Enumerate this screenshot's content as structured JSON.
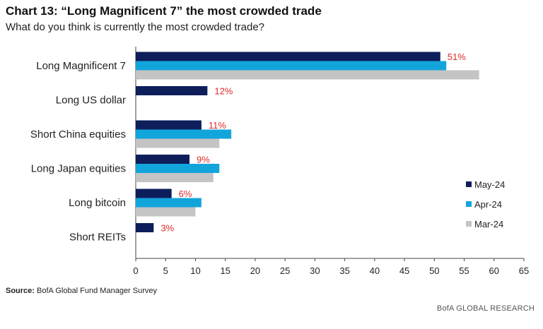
{
  "title": "Chart 13: “Long Magnificent 7” the most crowded trade",
  "subtitle": "What do you think is currently the most crowded trade?",
  "source_label": "Source:",
  "source_text": "BofA Global Fund Manager Survey",
  "brand": "BofA GLOBAL RESEARCH",
  "chart_data": {
    "type": "bar",
    "orientation": "horizontal",
    "title": "Chart 13: “Long Magnificent 7” the most crowded trade",
    "subtitle": "What do you think is currently the most crowded trade?",
    "categories": [
      "Long Magnificent 7",
      "Long US dollar",
      "Short China equities",
      "Long Japan equities",
      "Long bitcoin",
      "Short REITs"
    ],
    "series": [
      {
        "name": "May-24",
        "color": "#0d1e5b",
        "values": [
          51,
          12,
          11,
          9,
          6,
          3
        ]
      },
      {
        "name": "Apr-24",
        "color": "#12a5dc",
        "values": [
          52,
          null,
          16,
          14,
          11,
          null
        ]
      },
      {
        "name": "Mar-24",
        "color": "#c4c4c4",
        "values": [
          57.5,
          null,
          14,
          13,
          10,
          null
        ]
      }
    ],
    "data_labels": [
      "51%",
      "12%",
      "11%",
      "9%",
      "6%",
      "3%"
    ],
    "data_label_color": "#e02a2a",
    "xlim": [
      0,
      65
    ],
    "xticks": [
      0,
      5,
      10,
      15,
      20,
      25,
      30,
      35,
      40,
      45,
      50,
      55,
      60,
      65
    ],
    "xlabel": "",
    "ylabel": "",
    "legend_position": "right",
    "grid": false
  }
}
